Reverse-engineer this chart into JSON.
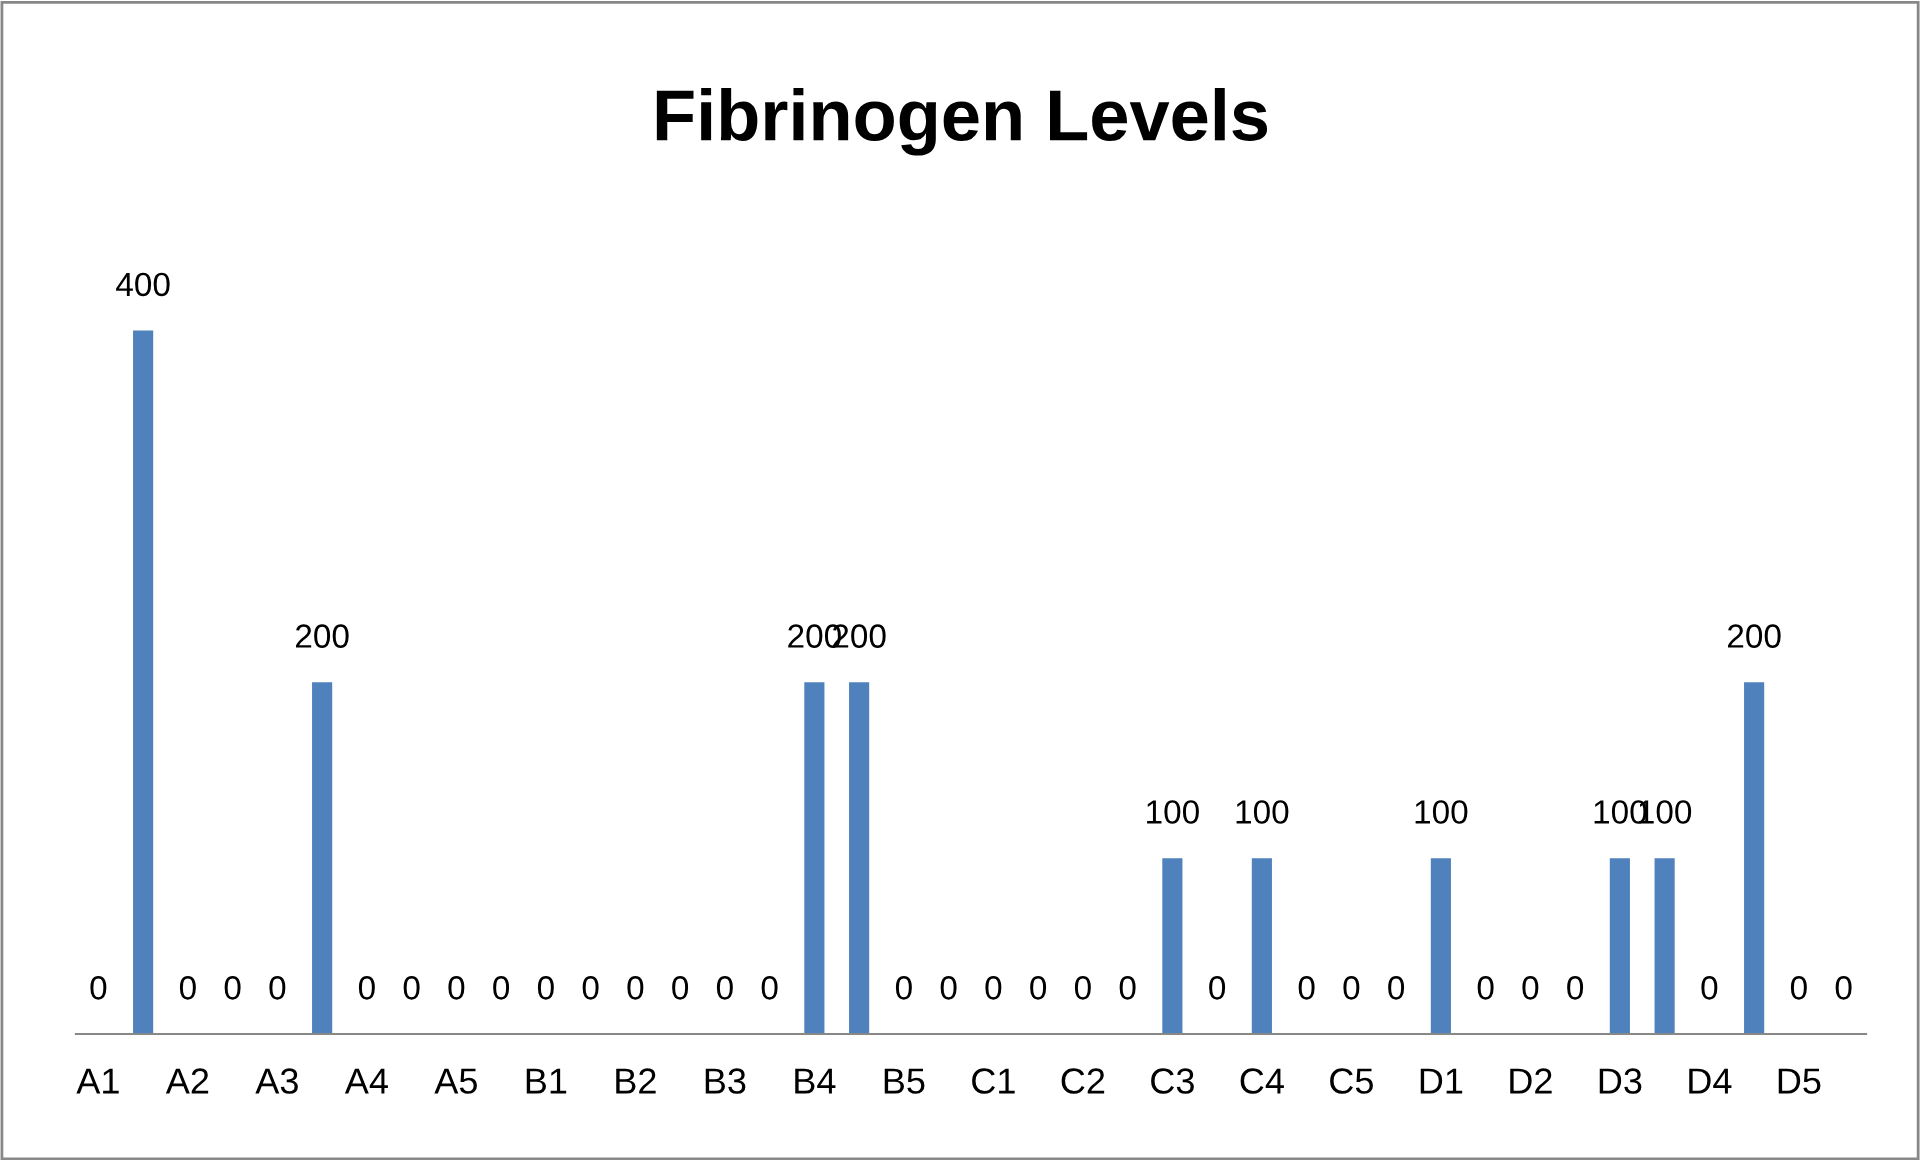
{
  "chart_data": {
    "type": "bar",
    "title": "Fibrinogen Levels",
    "categories": [
      "A1",
      null,
      "A2",
      null,
      "A3",
      null,
      "A4",
      null,
      "A5",
      null,
      "B1",
      null,
      "B2",
      null,
      "B3",
      null,
      "B4",
      null,
      "B5",
      null,
      "C1",
      null,
      "C2",
      null,
      "C3",
      null,
      "C4",
      null,
      "C5",
      null,
      "D1",
      null,
      "D2",
      null,
      "D3",
      null,
      "D4",
      null,
      "D5",
      null
    ],
    "values": [
      0,
      400,
      0,
      0,
      0,
      200,
      0,
      0,
      0,
      0,
      0,
      0,
      0,
      0,
      0,
      0,
      200,
      200,
      0,
      0,
      0,
      0,
      0,
      0,
      100,
      0,
      100,
      0,
      0,
      0,
      100,
      0,
      0,
      0,
      100,
      100,
      0,
      200,
      0,
      0
    ],
    "color": "#4f81bd",
    "data_labels": true,
    "grid": false,
    "legend": false
  }
}
